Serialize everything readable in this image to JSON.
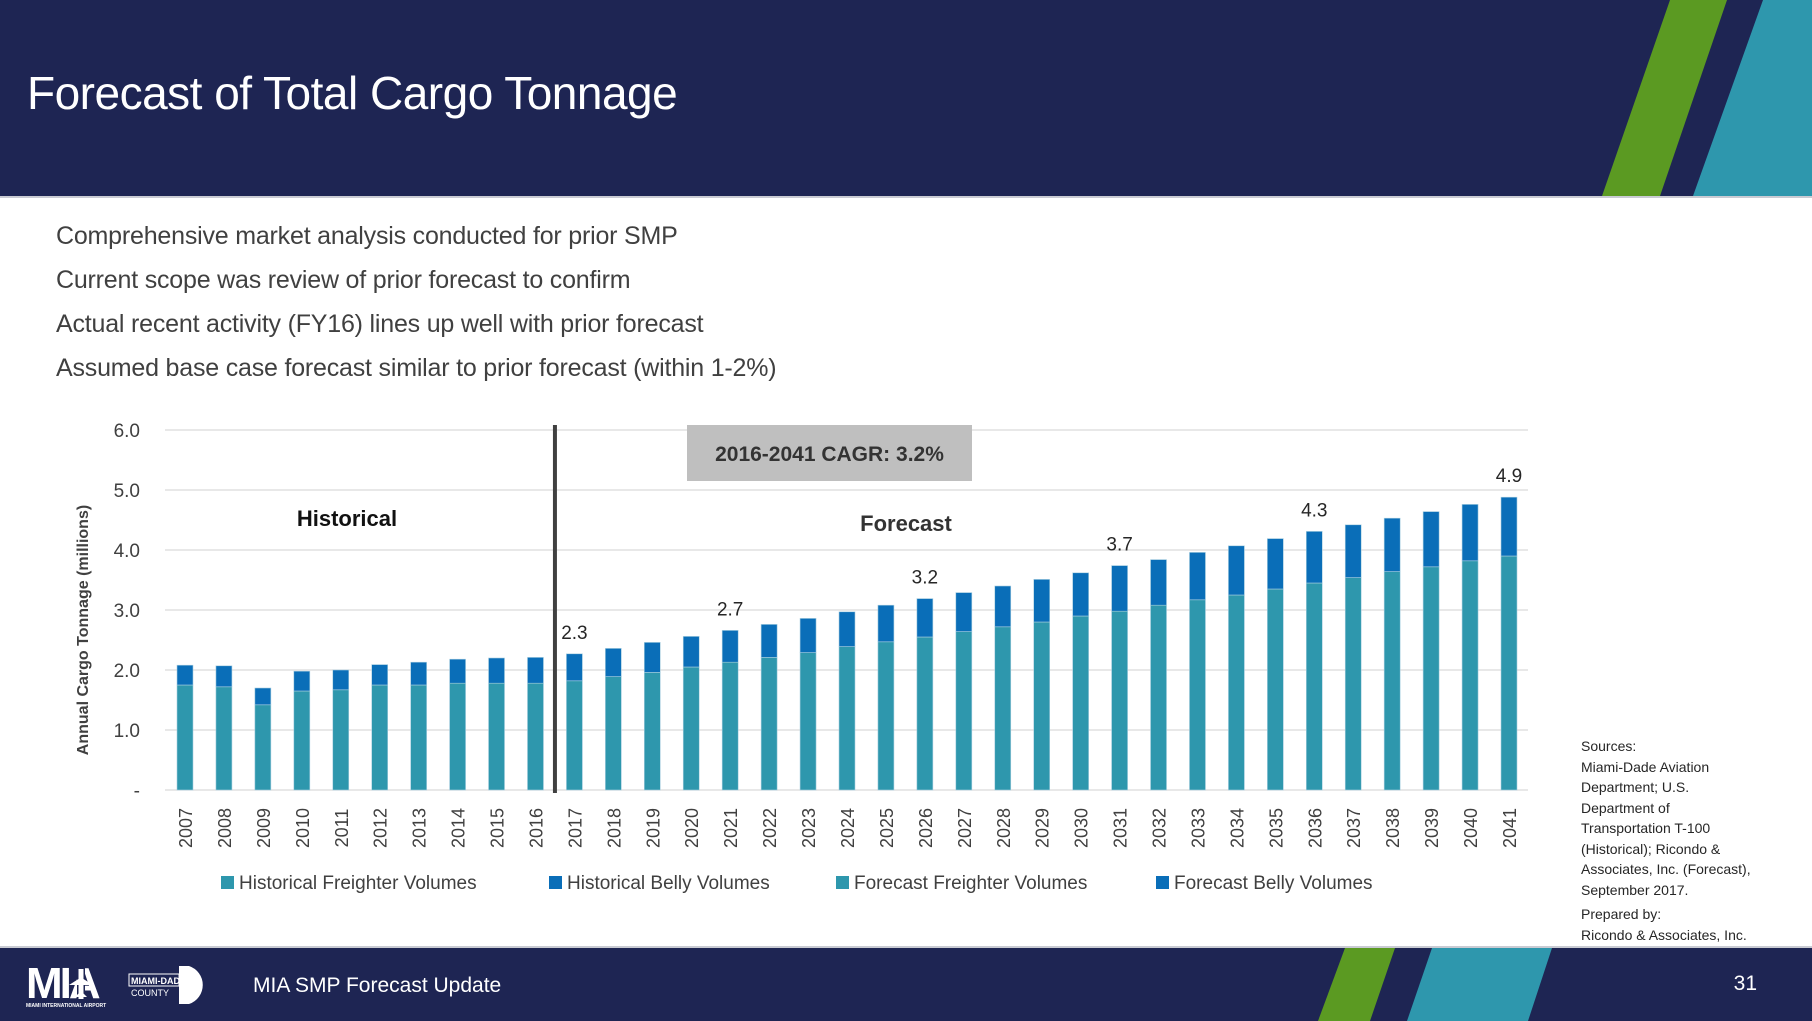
{
  "header": {
    "title": "Forecast of Total Cargo Tonnage",
    "stripe_colors": {
      "green": "#5b9a22",
      "teal": "#2e97ad",
      "navy": "#1e2553"
    }
  },
  "bullets": [
    "Comprehensive market analysis conducted for prior SMP",
    "Current scope was review of prior forecast to confirm",
    "Actual recent activity (FY16) lines up well with prior forecast",
    "Assumed base case forecast similar to prior forecast (within 1-2%)"
  ],
  "chart_data": {
    "type": "bar",
    "stacked": true,
    "title": "",
    "xlabel": "",
    "ylabel": "Annual Cargo Tonnage (millions)",
    "ylim": [
      0,
      6
    ],
    "yticks": [
      "-",
      "1.0",
      "2.0",
      "3.0",
      "4.0",
      "5.0",
      "6.0"
    ],
    "grid": true,
    "legend_position": "bottom",
    "categories": [
      "2007",
      "2008",
      "2009",
      "2010",
      "2011",
      "2012",
      "2013",
      "2014",
      "2015",
      "2016",
      "2017",
      "2018",
      "2019",
      "2020",
      "2021",
      "2022",
      "2023",
      "2024",
      "2025",
      "2026",
      "2027",
      "2028",
      "2029",
      "2030",
      "2031",
      "2032",
      "2033",
      "2034",
      "2035",
      "2036",
      "2037",
      "2038",
      "2039",
      "2040",
      "2041"
    ],
    "historical_count": 10,
    "series": [
      {
        "name": "Historical Freighter Volumes",
        "color": "#2e97ad",
        "values": [
          1.75,
          1.72,
          1.42,
          1.65,
          1.67,
          1.75,
          1.75,
          1.78,
          1.78,
          1.78,
          null,
          null,
          null,
          null,
          null,
          null,
          null,
          null,
          null,
          null,
          null,
          null,
          null,
          null,
          null,
          null,
          null,
          null,
          null,
          null,
          null,
          null,
          null,
          null,
          null
        ]
      },
      {
        "name": "Historical Belly Volumes",
        "color": "#0a6eb8",
        "values": [
          0.33,
          0.35,
          0.28,
          0.33,
          0.33,
          0.34,
          0.38,
          0.4,
          0.42,
          0.43,
          null,
          null,
          null,
          null,
          null,
          null,
          null,
          null,
          null,
          null,
          null,
          null,
          null,
          null,
          null,
          null,
          null,
          null,
          null,
          null,
          null,
          null,
          null,
          null,
          null
        ]
      },
      {
        "name": "Forecast Freighter Volumes",
        "color": "#2e97ad",
        "values": [
          null,
          null,
          null,
          null,
          null,
          null,
          null,
          null,
          null,
          null,
          1.82,
          1.89,
          1.96,
          2.05,
          2.13,
          2.21,
          2.29,
          2.39,
          2.47,
          2.55,
          2.64,
          2.72,
          2.8,
          2.9,
          2.98,
          3.08,
          3.17,
          3.25,
          3.35,
          3.45,
          3.54,
          3.64,
          3.72,
          3.82,
          3.9
        ]
      },
      {
        "name": "Forecast Belly Volumes",
        "color": "#0a6eb8",
        "values": [
          null,
          null,
          null,
          null,
          null,
          null,
          null,
          null,
          null,
          null,
          0.45,
          0.47,
          0.5,
          0.51,
          0.53,
          0.55,
          0.57,
          0.58,
          0.61,
          0.64,
          0.65,
          0.68,
          0.71,
          0.72,
          0.76,
          0.76,
          0.79,
          0.82,
          0.84,
          0.86,
          0.88,
          0.89,
          0.92,
          0.94,
          0.98
        ]
      }
    ],
    "data_labels": [
      {
        "category": "2017",
        "text": "2.3"
      },
      {
        "category": "2021",
        "text": "2.7"
      },
      {
        "category": "2026",
        "text": "3.2"
      },
      {
        "category": "2031",
        "text": "3.7"
      },
      {
        "category": "2036",
        "text": "4.3"
      },
      {
        "category": "2041",
        "text": "4.9"
      }
    ],
    "annotations": {
      "historical_label": "Historical",
      "forecast_label": "Forecast",
      "cagr_box": "2016-2041 CAGR: 3.2%",
      "divider_between": [
        "2016",
        "2017"
      ]
    },
    "legend": [
      {
        "label": "Historical Freighter Volumes",
        "color": "#2e97ad"
      },
      {
        "label": "Historical Belly Volumes",
        "color": "#0a6eb8"
      },
      {
        "label": "Forecast Freighter Volumes",
        "color": "#2e97ad"
      },
      {
        "label": "Forecast Belly Volumes",
        "color": "#0a6eb8"
      }
    ]
  },
  "sources": {
    "text": "Sources: Miami-Dade Aviation Department; U.S. Department of Transportation T-100 (Historical); Ricondo & Associates, Inc.  (Forecast), September 2017.",
    "lines": [
      "Sources:",
      "Miami-Dade Aviation",
      "Department; U.S.",
      "Department of",
      "Transportation T-100",
      "(Historical); Ricondo &",
      "Associates, Inc.  (Forecast),",
      "September 2017."
    ],
    "prepared_by_label": "Prepared by:",
    "prepared_by": "Ricondo & Associates, Inc."
  },
  "footer": {
    "logo": {
      "main": "MIA",
      "county_top": "MIAMI-DADE",
      "county_bottom": "COUNTY",
      "subtitle": "MIAMI INTERNATIONAL AIRPORT",
      "icon": "airplane-icon"
    },
    "text": "MIA SMP Forecast Update",
    "page_number": "31"
  }
}
